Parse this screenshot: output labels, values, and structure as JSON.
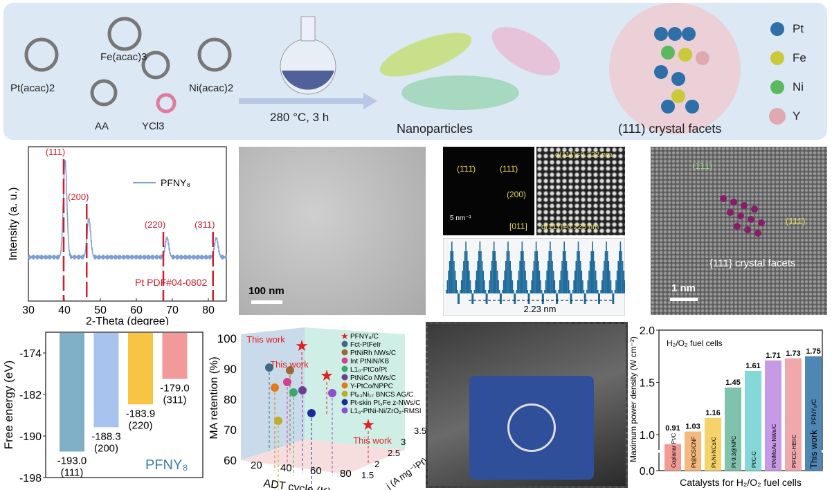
{
  "synthesis": {
    "precursors": [
      "Pt(acac)2",
      "Fe(acac)3",
      "Ni(acac)2",
      "AA",
      "YCl3"
    ],
    "condition": "280 °C, 3 h",
    "product_label": "Nanoparticles",
    "facet_label": "(111) crystal facets",
    "legend": [
      {
        "el": "Pt",
        "color": "#2e6fa7"
      },
      {
        "el": "Fe",
        "color": "#c9c93a"
      },
      {
        "el": "Ni",
        "color": "#5cb85c"
      },
      {
        "el": "Y",
        "color": "#e0a9b0"
      }
    ]
  },
  "tem": {
    "scale_bar": "100 nm"
  },
  "fft": {
    "labels": [
      "(1̄11̄)",
      "(111̄)",
      "(200)"
    ],
    "scale_bar": "5 nm⁻¹",
    "zone_axis": "[011]",
    "d1": "d(111̄)=0.222 nm",
    "d2": "d(1̄11̄)=0.223 nm",
    "profile_length": "2.23 nm"
  },
  "hrtem": {
    "facet1": "(1̄11̄)",
    "facet2": "(111̄)",
    "caption": "{111} crystal facets",
    "scale_bar": "1 nm"
  },
  "chart_data": [
    {
      "type": "line",
      "title": "",
      "xlabel": "2-Theta (degree)",
      "ylabel": "Intensity (a. u.)",
      "xlim": [
        30,
        85
      ],
      "xticks": [
        30,
        40,
        50,
        60,
        70,
        80
      ],
      "series": [
        {
          "name": "PFNY₈",
          "color": "#7d9fd3",
          "peaks": [
            {
              "x": 40.2,
              "height": 1.0
            },
            {
              "x": 46.8,
              "height": 0.4
            },
            {
              "x": 68.5,
              "height": 0.2
            },
            {
              "x": 82.2,
              "height": 0.2
            }
          ]
        }
      ],
      "reference": {
        "label": "Pt  PDF#04-0802",
        "color": "#d01c2b",
        "lines": [
          {
            "x": 39.8,
            "hkl": "(111)"
          },
          {
            "x": 46.2,
            "hkl": "(200)"
          },
          {
            "x": 67.5,
            "hkl": "(220)"
          },
          {
            "x": 81.3,
            "hkl": "(311)"
          }
        ]
      }
    },
    {
      "type": "bar",
      "title": "",
      "xlabel": "",
      "ylabel": "Free energy (eV)",
      "ylim": [
        -198,
        -170
      ],
      "yticks": [
        -174,
        -182,
        -190,
        -198
      ],
      "categories": [
        "(111)",
        "(200)",
        "(220)",
        "(311)"
      ],
      "values": [
        -193.0,
        -188.3,
        -183.9,
        -179.0
      ],
      "value_labels": [
        "-193.0",
        "-188.3",
        "-183.9",
        "-179.0"
      ],
      "colors": [
        "#7fb0c8",
        "#a8c4ee",
        "#f8c443",
        "#f29a9a"
      ],
      "annotation": "PFNY₈"
    },
    {
      "type": "scatter",
      "title": "",
      "xlabel": "ADT cycle (K)",
      "ylabel": "MA retention (%)",
      "zlabel": "j (A mg⁻¹Pt)",
      "xticks": [
        20,
        40,
        60,
        80
      ],
      "yticks": [
        60,
        70,
        80,
        90,
        100
      ],
      "zticks": [
        1.5,
        2.0,
        2.5,
        3.0,
        3.5
      ],
      "annotation": "This work",
      "legend": [
        {
          "name": "PFNY₈/C",
          "color": "#e02020",
          "marker": "star"
        },
        {
          "name": "Fct-PtFeIr",
          "color": "#3a6b86"
        },
        {
          "name": "PtNiRh NWs/C",
          "color": "#9a6a32"
        },
        {
          "name": "Int PtNiN/KB",
          "color": "#d6408f"
        },
        {
          "name": "L1₀-PtCo/Pt",
          "color": "#3aa86a"
        },
        {
          "name": "PtNiCo NWs/C",
          "color": "#6a3f8f"
        },
        {
          "name": "Y-PtCo/NPPC",
          "color": "#e07a1a"
        },
        {
          "name": "Pt₈₃Ni₁₇ BNCS AG/C",
          "color": "#bcae2a"
        },
        {
          "name": "Pt-skin Pt₃Fe z-NWs/C",
          "color": "#1a2a9a"
        },
        {
          "name": "L1₀-PtNi-Ni/ZrO₂-RMSI",
          "color": "#8c4fd0"
        }
      ]
    },
    {
      "type": "bar",
      "title": "H₂/O₂ fuel cells",
      "xlabel": "Catalysts for H₂/O₂ fuel cells",
      "ylabel": "Maximum power density (W cm⁻²)",
      "ylim": [
        0,
        2.0
      ],
      "yticks": [
        "0.0",
        "1.0",
        "1.5",
        "2.0"
      ],
      "axis_break": true,
      "categories": [
        "Coplanar Pt/C",
        "Pt@CS/CNF",
        "Pt₃Ni-NCs/C",
        "Pt-9.3@NPC",
        "Pt/C-C",
        "PtNiMoAu NWs/C",
        "PtFCC-HEI/C",
        "PFNY₈/C"
      ],
      "values": [
        0.91,
        1.03,
        1.16,
        1.45,
        1.61,
        1.71,
        1.73,
        1.75
      ],
      "value_labels": [
        "0.91",
        "1.03",
        "1.16",
        "1.45",
        "1.61",
        "1.71",
        "1.73",
        "1.75"
      ],
      "colors": [
        "#f39a95",
        "#f5b97f",
        "#f6d36a",
        "#7fc2ae",
        "#84d8d8",
        "#c79ae6",
        "#f0a8ad",
        "#4e86b4"
      ],
      "highlight_label": "This work"
    }
  ]
}
